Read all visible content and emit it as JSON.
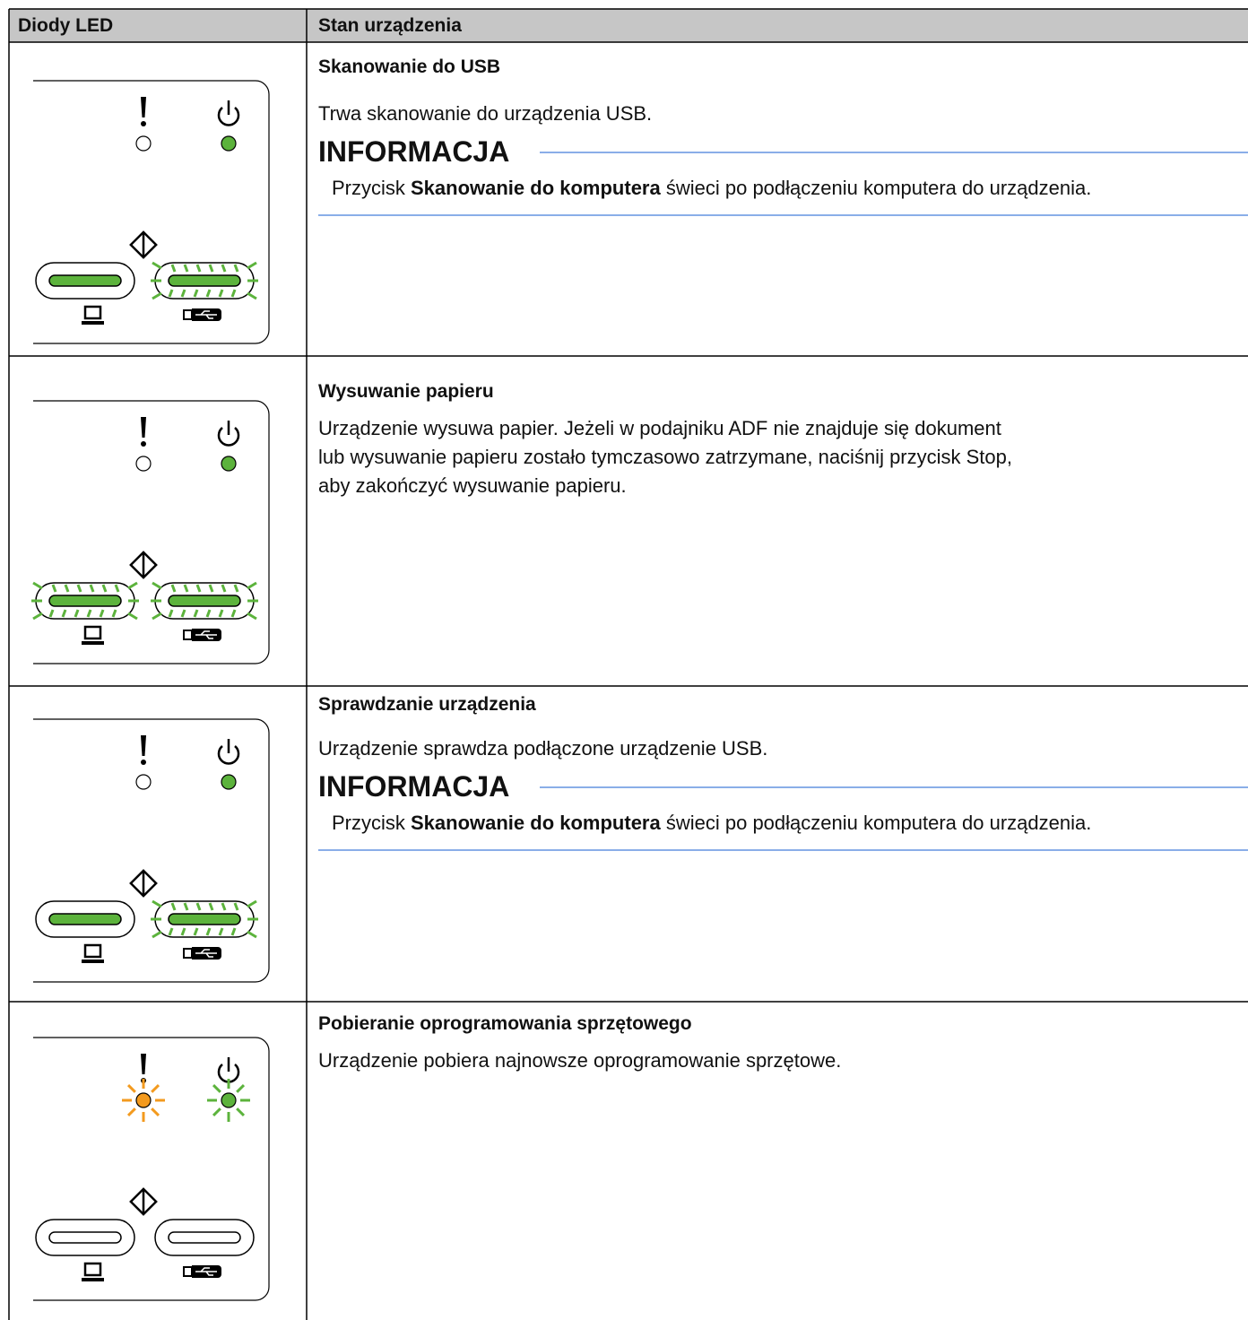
{
  "table": {
    "header": [
      "Diody LED",
      "Stan urządzenia"
    ],
    "rows": [
      {
        "title": "Skanowanie do USB",
        "description": [
          "Trwa skanowanie do urządzenia USB."
        ],
        "note": {
          "heading": "INFORMACJA",
          "text": [
            "Przycisk ",
            "Skanowanie do komputera",
            " świeci po podłączeniu komputera do urządzenia."
          ]
        }
      },
      {
        "title": "Wysuwanie papieru",
        "description": [
          "Urządzenie wysuwa papier. Jeżeli w podajniku ADF nie znajduje się dokument",
          "lub wysuwanie papieru zostało tymczasowo zatrzymane, naciśnij przycisk Stop,",
          "aby zakończyć wysuwanie papieru."
        ]
      },
      {
        "title": "Sprawdzanie urządzenia",
        "description": [
          "Urządzenie sprawdza podłączone urządzenie USB."
        ],
        "note": {
          "heading": "INFORMACJA",
          "text": [
            "Przycisk ",
            "Skanowanie do komputera",
            " świeci po podłączeniu komputera do urządzenia."
          ]
        }
      },
      {
        "title": "Pobieranie oprogramowania sprzętowego",
        "description": [
          "Urządzenie pobiera najnowsze oprogramowanie sprzętowe."
        ]
      }
    ]
  }
}
